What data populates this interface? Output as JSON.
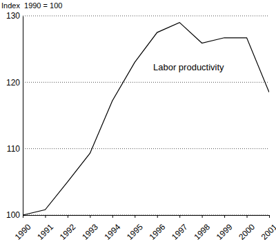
{
  "chart_data": {
    "type": "line",
    "ylabel": "Index  1990 = 100",
    "x": [
      1990,
      1991,
      1992,
      1993,
      1994,
      1995,
      1996,
      1997,
      1998,
      1999,
      2000,
      2001
    ],
    "series": [
      {
        "name": "Labor productivity",
        "color": "#000000",
        "values": [
          100,
          100.8,
          105,
          109.3,
          117.2,
          123,
          127.5,
          129,
          125.9,
          126.7,
          126.7,
          118.5
        ]
      }
    ],
    "xlim": [
      1990,
      2001
    ],
    "xticks": [
      1990,
      1991,
      1992,
      1993,
      1994,
      1995,
      1996,
      1997,
      1998,
      1999,
      2000,
      2001
    ],
    "ylim": [
      100,
      130
    ],
    "yticks": [
      100,
      110,
      120,
      130
    ],
    "grid": true
  }
}
